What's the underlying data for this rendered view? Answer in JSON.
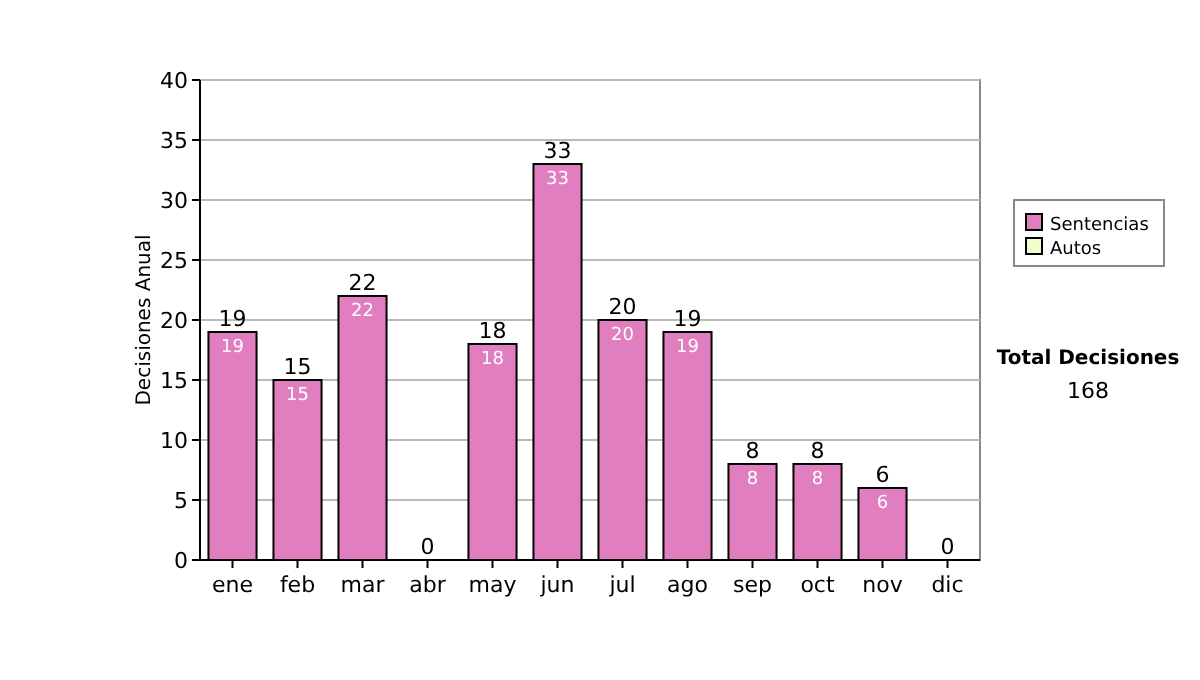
{
  "chart_data": {
    "type": "bar",
    "stacked": true,
    "ylabel": "Decisiones Anual",
    "categories": [
      "ene",
      "feb",
      "mar",
      "abr",
      "may",
      "jun",
      "jul",
      "ago",
      "sep",
      "oct",
      "nov",
      "dic"
    ],
    "series": [
      {
        "name": "Sentencias",
        "color": "#e07ec0",
        "values": [
          19,
          15,
          22,
          0,
          18,
          33,
          20,
          19,
          8,
          8,
          6,
          0
        ],
        "value_labels": [
          "19",
          "15",
          "22",
          null,
          "18",
          "33",
          "20",
          "19",
          "8",
          "8",
          "6",
          null
        ]
      },
      {
        "name": "Autos",
        "color": "#eeffcc",
        "values": [
          0,
          0,
          0,
          0,
          0,
          0,
          0,
          0,
          0,
          0,
          0,
          0
        ]
      }
    ],
    "totals": [
      "19",
      "15",
      "22",
      "0",
      "18",
      "33",
      "20",
      "19",
      "8",
      "8",
      "6",
      "0"
    ],
    "ylim": [
      0,
      40
    ],
    "yticks": [
      0,
      5,
      10,
      15,
      20,
      25,
      30,
      35,
      40
    ],
    "grid": "y",
    "legend": "right",
    "annotations": [
      "Total Decisiones",
      "168"
    ]
  }
}
